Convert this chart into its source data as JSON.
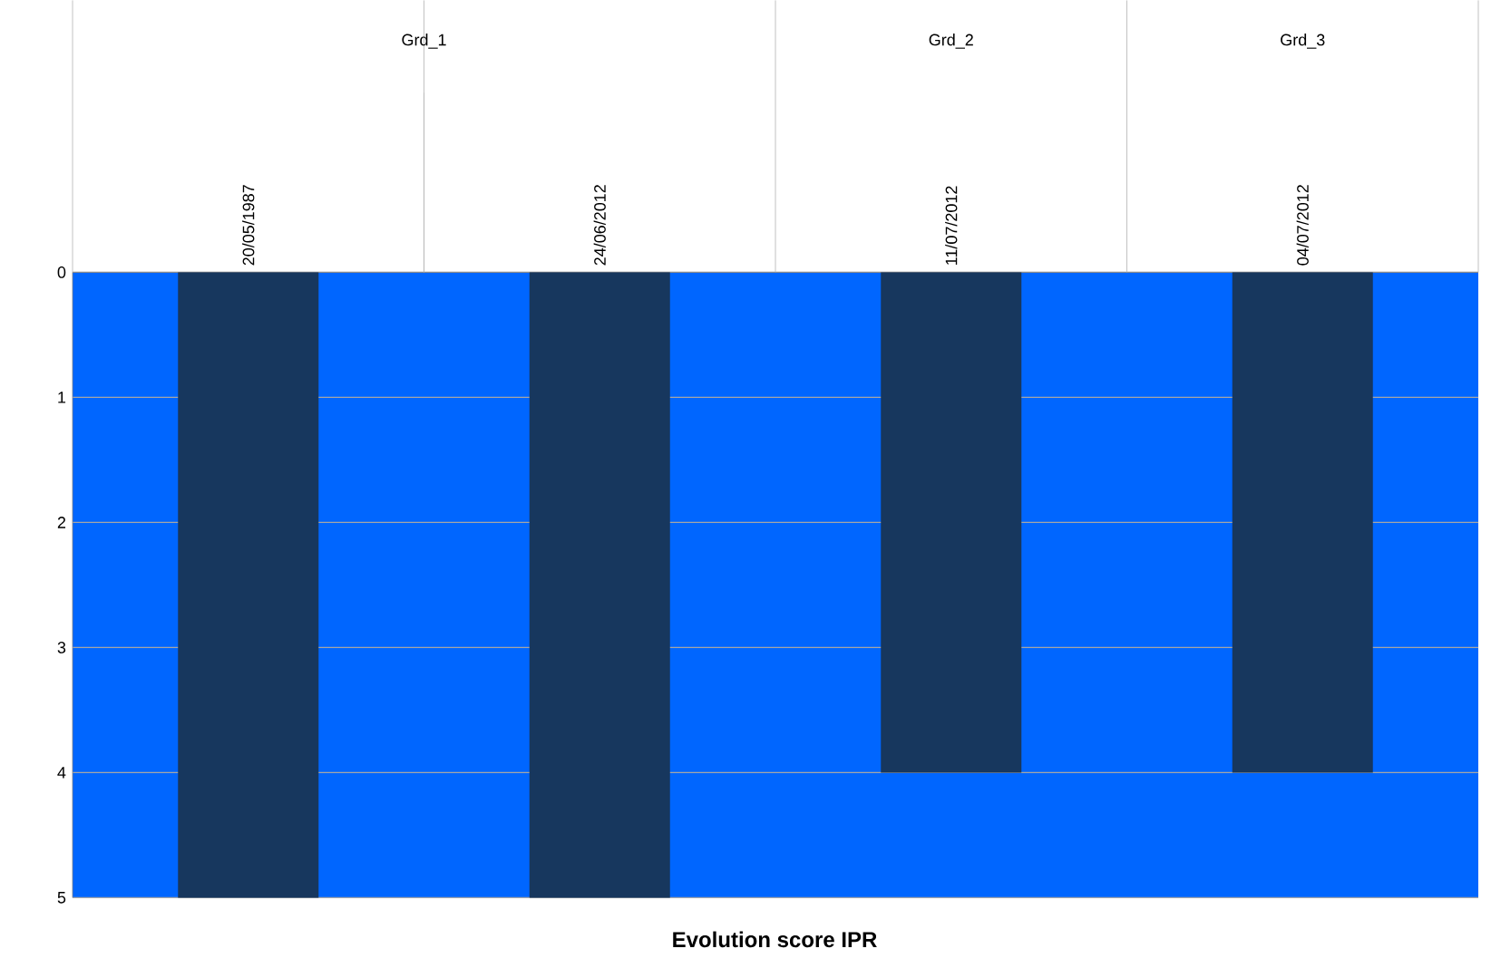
{
  "chart_data": {
    "type": "bar",
    "title": "Evolution score IPR",
    "categories": [
      "20/05/1987",
      "24/06/2012",
      "11/07/2012",
      "04/07/2012"
    ],
    "values": [
      5,
      5,
      4,
      4
    ],
    "color": "#17375e",
    "ylim": [
      5,
      0
    ],
    "yticks": [
      0,
      1,
      2,
      3,
      4,
      5
    ],
    "grid": "y",
    "annotations": [
      "Grd_1",
      "Grd_2",
      "Grd_3"
    ]
  }
}
